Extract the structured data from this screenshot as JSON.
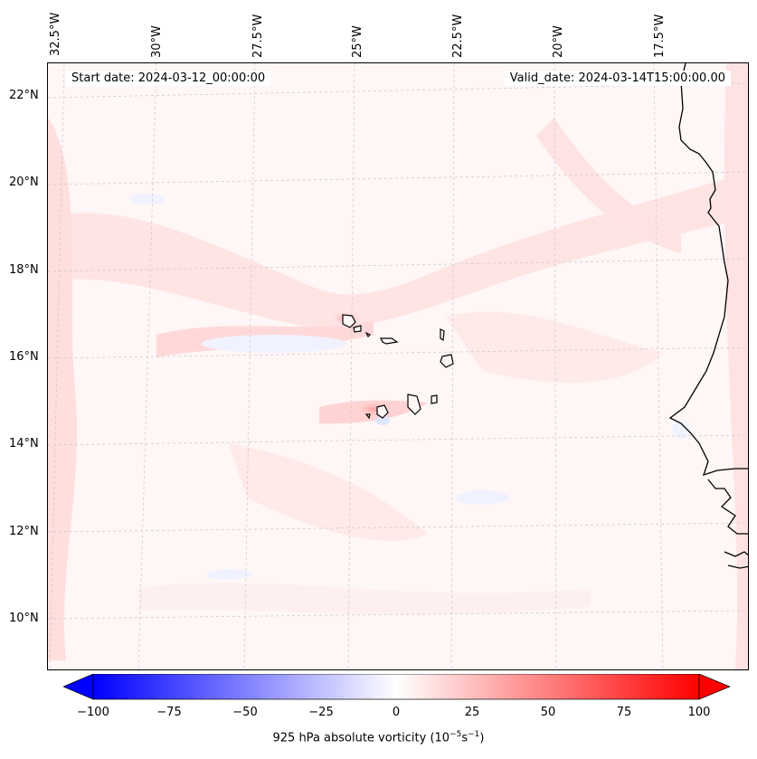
{
  "header": {
    "start_date": "Start date: 2024-03-12_00:00:00",
    "valid_date": "Valid_date: 2024-03-14T15:00:00.00"
  },
  "axes": {
    "longitude_labels": [
      "32.5°W",
      "30°W",
      "27.5°W",
      "25°W",
      "22.5°W",
      "20°W",
      "17.5°W"
    ],
    "latitude_labels": [
      "22°N",
      "20°N",
      "18°N",
      "16°N",
      "14°N",
      "12°N",
      "10°N"
    ]
  },
  "map": {
    "field": "925 hPa absolute vorticity",
    "gridlines": true,
    "coastline_color": "#000000",
    "colormap": "bwr",
    "features": [
      "Cape Verde islands",
      "West African coast"
    ]
  },
  "colorbar": {
    "ticks": [
      "−100",
      "−75",
      "−50",
      "−25",
      "0",
      "25",
      "50",
      "75",
      "100"
    ],
    "label": "925 hPa absolute vorticity (10",
    "label_unit_exp1": "−5",
    "label_mid": "s",
    "label_unit_exp2": "−1",
    "label_end": ")",
    "min": -100,
    "max": 100,
    "extend": "both",
    "colors": {
      "min": "#0000ff",
      "mid": "#ffffff",
      "max": "#ff0000"
    }
  }
}
